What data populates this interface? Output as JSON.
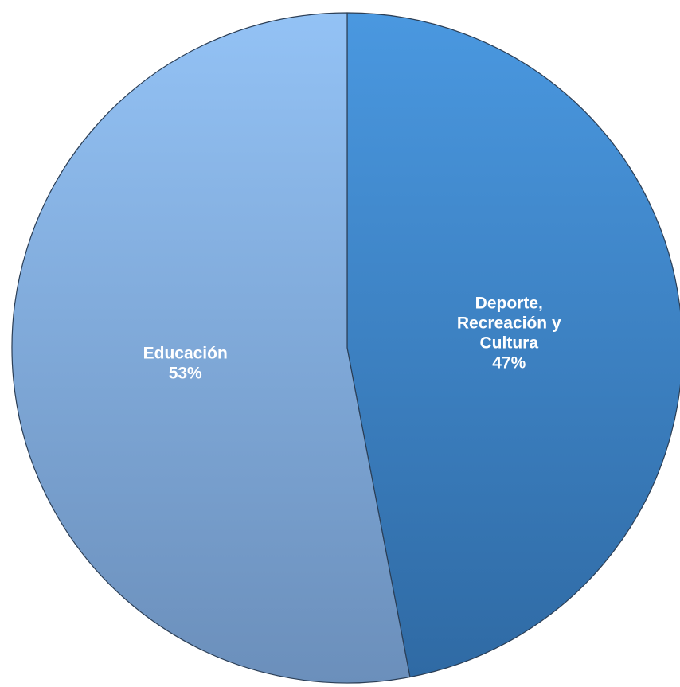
{
  "chart_data": {
    "type": "pie",
    "title": "",
    "start_angle_deg": 0,
    "direction": "clockwise",
    "slices": [
      {
        "label_lines": [
          "Deporte,",
          "Recreación y",
          "Cultura"
        ],
        "label": "Deporte, Recreación y Cultura",
        "value": 47,
        "value_label": "47%",
        "color_top": "#4a98e0",
        "color_bottom": "#2f6aa4"
      },
      {
        "label_lines": [
          "Educación"
        ],
        "label": "Educación",
        "value": 53,
        "value_label": "53%",
        "color_top": "#93c2f5",
        "color_bottom": "#6b8fbb"
      }
    ],
    "border_color": "#2b3e55"
  }
}
